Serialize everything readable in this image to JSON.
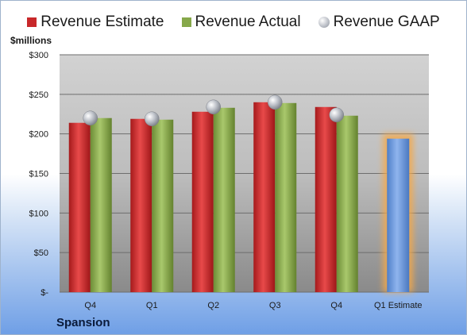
{
  "chart_data": {
    "type": "bar",
    "title": "",
    "ylabel": "$millions",
    "xlabel": "",
    "ylim": [
      0,
      300
    ],
    "yticks": [
      0,
      50,
      100,
      150,
      200,
      250,
      300
    ],
    "ytick_labels": [
      "$-",
      "$50",
      "$100",
      "$150",
      "$200",
      "$250",
      "$300"
    ],
    "categories": [
      "Q4",
      "Q1",
      "Q2",
      "Q3",
      "Q4",
      "Q1 Estimate"
    ],
    "series": [
      {
        "name": "Revenue Estimate",
        "type": "bar",
        "color": "#c8282a",
        "values": [
          214,
          219,
          228,
          240,
          234,
          null
        ]
      },
      {
        "name": "Revenue Actual",
        "type": "bar",
        "color": "#86a84a",
        "values": [
          220,
          218,
          233,
          239,
          223,
          null
        ]
      },
      {
        "name": "Revenue GAAP",
        "type": "marker",
        "color": "#b8bcc4",
        "values": [
          220,
          219,
          234,
          240,
          224,
          null
        ]
      },
      {
        "name": "Q1 Estimate",
        "type": "bar",
        "color": "#6f9be0",
        "highlight": "#f5a94a",
        "values": [
          null,
          null,
          null,
          null,
          null,
          194
        ]
      }
    ],
    "legend_position": "top",
    "grid": true,
    "plot_background": "gray-gradient"
  },
  "legend": [
    "Revenue Estimate",
    "Revenue Actual",
    "Revenue GAAP"
  ],
  "unit_label": "$millions",
  "company": "Spansion"
}
